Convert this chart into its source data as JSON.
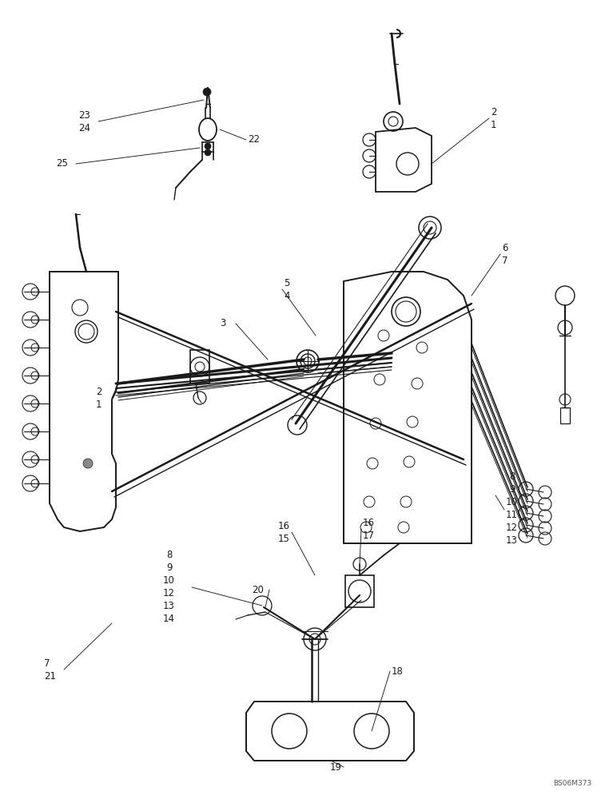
{
  "bg": "#ffffff",
  "lc": "#1a1a1a",
  "figsize": [
    7.52,
    10.0
  ],
  "dpi": 100,
  "fig_code": "BS06M373",
  "lw_main": 1.3,
  "lw_thin": 0.7,
  "lw_thick": 2.0,
  "font_size": 8.5
}
